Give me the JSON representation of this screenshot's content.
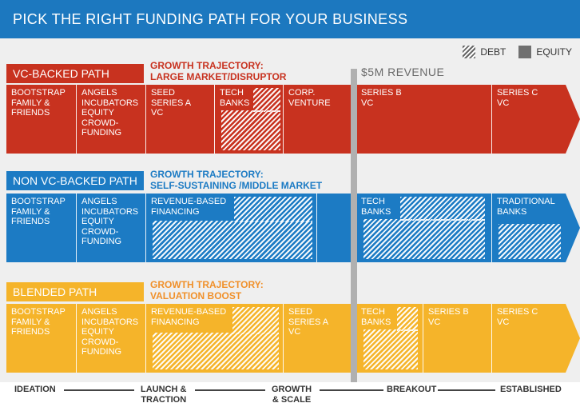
{
  "header": {
    "title": "PICK THE RIGHT FUNDING PATH FOR YOUR BUSINESS"
  },
  "legend": {
    "debt_label": "DEBT",
    "equity_label": "EQUITY"
  },
  "revenue_marker": {
    "label": "$5M  REVENUE"
  },
  "colors": {
    "header": "#1c78bf",
    "vc": "#c8321f",
    "nonvc": "#1c7bc4",
    "blended": "#f5b42a",
    "trajectory_orange": "#f0902a"
  },
  "paths": {
    "vc": {
      "label": "VC-BACKED PATH",
      "trajectory_1": "GROWTH TRAJECTORY:",
      "trajectory_2": "LARGE MARKET/DISRUPTOR",
      "cells": [
        {
          "lines": [
            "BOOTSTRAP",
            "FAMILY &",
            "FRIENDS"
          ]
        },
        {
          "lines": [
            "ANGELS",
            "INCUBATORS",
            "EQUITY",
            "CROWD-",
            "FUNDING"
          ]
        },
        {
          "lines": [
            "SEED",
            "SERIES A",
            "VC"
          ]
        },
        {
          "lines": [
            "TECH",
            "BANKS"
          ]
        },
        {
          "lines": [
            "CORP.",
            "VENTURE"
          ]
        },
        {
          "lines": [
            "SERIES B",
            "VC"
          ]
        },
        {
          "lines": [
            "SERIES C",
            "VC"
          ]
        }
      ]
    },
    "nonvc": {
      "label": "NON VC-BACKED PATH",
      "trajectory_1": "GROWTH TRAJECTORY:",
      "trajectory_2": "SELF-SUSTAINING /MIDDLE MARKET",
      "cells": [
        {
          "lines": [
            "BOOTSTRAP",
            "FAMILY &",
            "FRIENDS"
          ]
        },
        {
          "lines": [
            "ANGELS",
            "INCUBATORS",
            "EQUITY",
            "CROWD-",
            "FUNDING"
          ]
        },
        {
          "lines": [
            "REVENUE-BASED",
            "FINANCING"
          ]
        },
        {
          "lines": [
            "TECH",
            "BANKS"
          ]
        },
        {
          "lines": [
            "TRADITIONAL",
            "BANKS"
          ]
        }
      ]
    },
    "blended": {
      "label": "BLENDED PATH",
      "trajectory_1": "GROWTH TRAJECTORY:",
      "trajectory_2": "VALUATION BOOST",
      "cells": [
        {
          "lines": [
            "BOOTSTRAP",
            "FAMILY &",
            "FRIENDS"
          ]
        },
        {
          "lines": [
            "ANGELS",
            "INCUBATORS",
            "EQUITY",
            "CROWD-",
            "FUNDING"
          ]
        },
        {
          "lines": [
            "REVENUE-BASED",
            "FINANCING"
          ]
        },
        {
          "lines": [
            "SEED",
            "SERIES A",
            "VC"
          ]
        },
        {
          "lines": [
            "TECH",
            "BANKS"
          ]
        },
        {
          "lines": [
            "SERIES B",
            "VC"
          ]
        },
        {
          "lines": [
            "SERIES C",
            "VC"
          ]
        }
      ]
    }
  },
  "timeline": {
    "ideation": "IDEATION",
    "launch_1": "LAUNCH &",
    "launch_2": "TRACTION",
    "growth_1": "GROWTH",
    "growth_2": "& SCALE",
    "breakout": "BREAKOUT",
    "established": "ESTABLISHED"
  }
}
